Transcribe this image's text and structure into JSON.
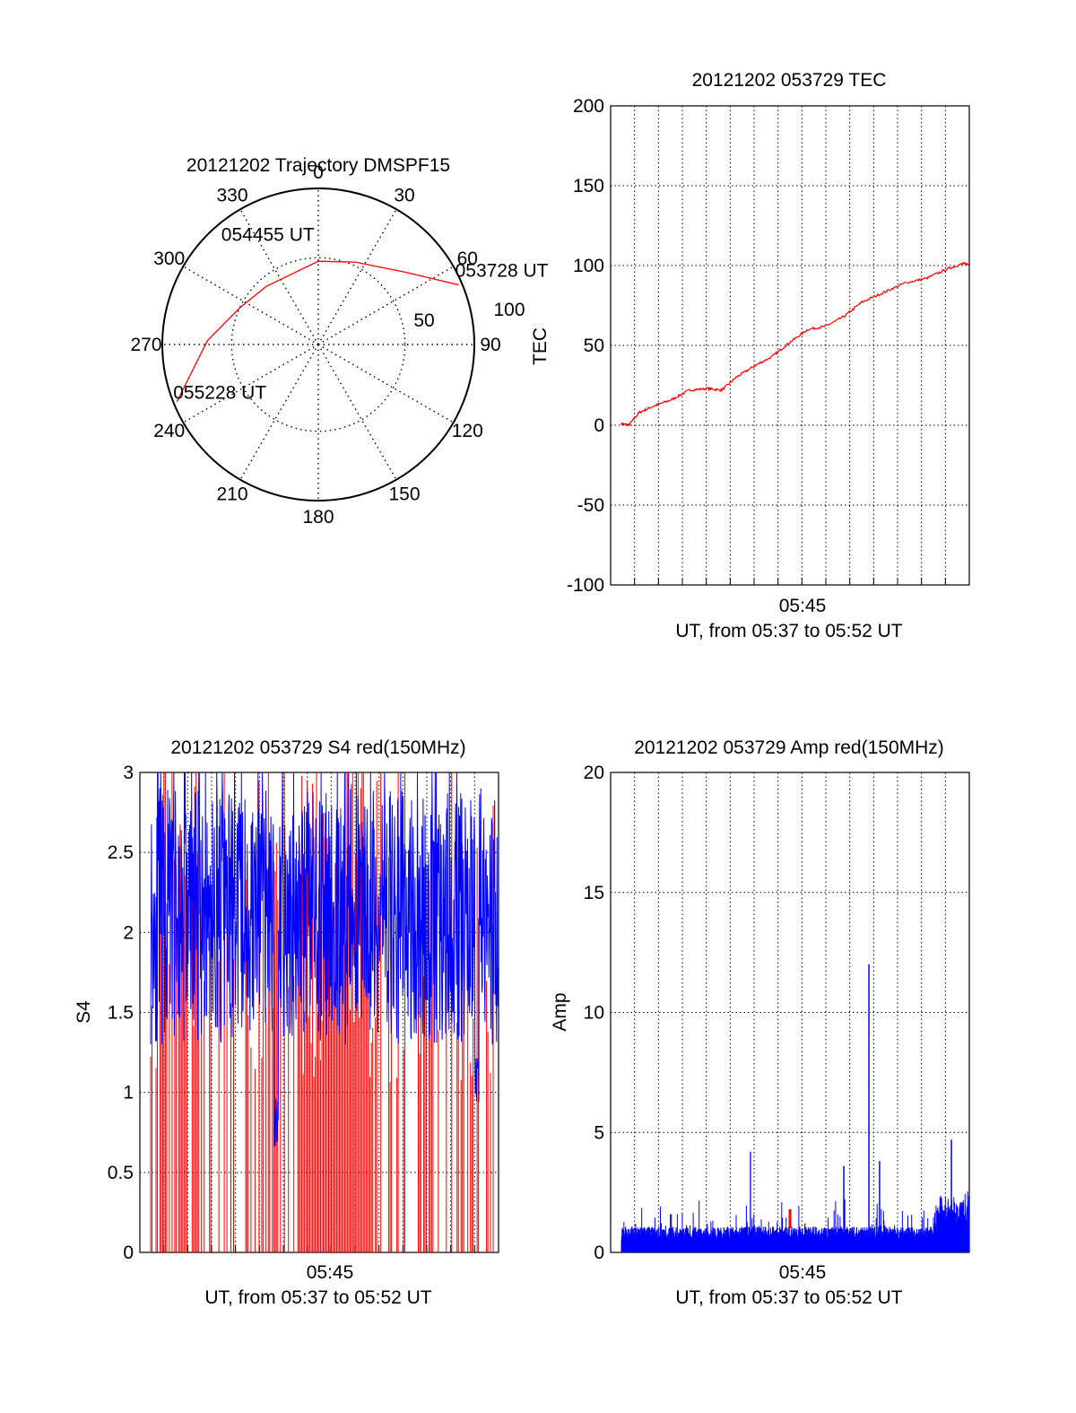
{
  "colors": {
    "red": "#ff0000",
    "blue": "#0000ff",
    "black": "#000000",
    "grid": "#000000"
  },
  "chart_data": [
    {
      "id": "trajectory",
      "type": "polar",
      "title": "20121202 Trajectory DMSPF15",
      "azimuth_labels": [
        "0",
        "30",
        "60",
        "90",
        "120",
        "150",
        "180",
        "210",
        "240",
        "270",
        "300",
        "330"
      ],
      "radial_labels": [
        "50",
        "100"
      ],
      "elevation_range": [
        0,
        90
      ],
      "track": {
        "color": "#ff0000",
        "points": [
          {
            "az": 67,
            "el": 2
          },
          {
            "az": 50,
            "el": 25
          },
          {
            "az": 24,
            "el": 38
          },
          {
            "az": 0,
            "el": 42
          },
          {
            "az": 318,
            "el": 45
          },
          {
            "az": 295,
            "el": 40
          },
          {
            "az": 272,
            "el": 26
          },
          {
            "az": 248,
            "el": 2
          }
        ]
      },
      "annotations": [
        {
          "label": "053728 UT",
          "az": 67,
          "el": 2
        },
        {
          "label": "054455 UT",
          "az": 318,
          "el": 45
        },
        {
          "label": "055228 UT",
          "az": 248,
          "el": 2
        }
      ]
    },
    {
      "id": "tec",
      "type": "line",
      "title": "20121202 053729 TEC",
      "ylabel": "TEC",
      "xlabel": "UT, from 05:37 to 05:52 UT",
      "xticklabel": "05:45",
      "ylim": [
        -100,
        200
      ],
      "yticks": [
        "-100",
        "-50",
        "0",
        "50",
        "100",
        "150",
        "200"
      ],
      "series": [
        {
          "color": "#ff0000",
          "x": [
            0.03,
            0.05,
            0.08,
            0.12,
            0.17,
            0.22,
            0.27,
            0.31,
            0.35,
            0.4,
            0.45,
            0.5,
            0.55,
            0.6,
            0.65,
            0.7,
            0.76,
            0.82,
            0.88,
            0.94,
            0.98,
            1.0
          ],
          "y": [
            1,
            0,
            8,
            12,
            16,
            22,
            23,
            22,
            30,
            37,
            43,
            52,
            60,
            62,
            68,
            77,
            83,
            89,
            92,
            98,
            101,
            101
          ]
        }
      ]
    },
    {
      "id": "s4",
      "type": "line",
      "title": "20121202 053729 S4 red(150MHz)",
      "ylabel": "S4",
      "xlabel": "UT, from 05:37 to 05:52 UT",
      "xticklabel": "05:45",
      "ylim": [
        0,
        3
      ],
      "yticks": [
        "0",
        "0.5",
        "1",
        "1.5",
        "2",
        "2.5",
        "3"
      ],
      "series": [
        {
          "color": "#0000ff",
          "center": 2.1,
          "spread": 0.8,
          "dips": [
            {
              "x": 0.38,
              "value": 0.65
            },
            {
              "x": 0.94,
              "value": 0.85
            }
          ]
        },
        {
          "color": "#ff0000",
          "center": 1.5,
          "spread": 1.5
        }
      ]
    },
    {
      "id": "amp",
      "type": "line",
      "title": "20121202 053729 Amp red(150MHz)",
      "ylabel": "Amp",
      "xlabel": "UT, from 05:37 to 05:52 UT",
      "xticklabel": "05:45",
      "ylim": [
        0,
        20
      ],
      "yticks": [
        "0",
        "5",
        "10",
        "15",
        "20"
      ],
      "series": [
        {
          "color": "#0000ff",
          "baseline": 0.8,
          "noise": 0.6,
          "spikes": [
            {
              "x": 0.39,
              "value": 4.2
            },
            {
              "x": 0.65,
              "value": 3.6
            },
            {
              "x": 0.72,
              "value": 12.0
            },
            {
              "x": 0.75,
              "value": 3.8
            },
            {
              "x": 0.95,
              "value": 4.7
            }
          ]
        },
        {
          "color": "#ff0000",
          "spikes": [
            {
              "x": 0.5,
              "value": 1.8
            }
          ]
        }
      ]
    }
  ]
}
